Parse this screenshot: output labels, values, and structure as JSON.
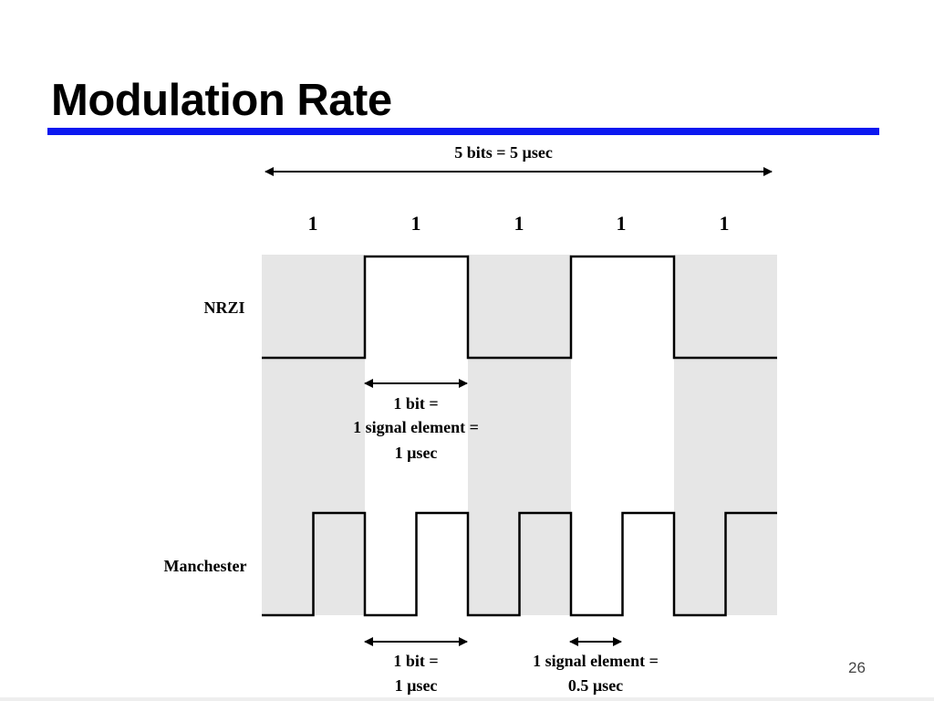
{
  "slide": {
    "title": "Modulation Rate",
    "page_number": "26",
    "accent_color": "#0b18f0"
  },
  "diagram": {
    "span_label": "5 bits = 5 µsec",
    "bits": [
      "1",
      "1",
      "1",
      "1",
      "1"
    ],
    "nrzi_label": "NRZI",
    "manchester_label": "Manchester",
    "nrzi_levels": [
      0,
      1,
      0,
      1,
      0
    ],
    "nrzi_annotation": [
      "1 bit =",
      "1 signal element =",
      "1 µsec"
    ],
    "manchester_bit_annotation": [
      "1 bit =",
      "1 µsec"
    ],
    "manchester_element_annotation": [
      "1 signal element =",
      "0.5 µsec"
    ],
    "shading_color": "#e6e6e6"
  }
}
